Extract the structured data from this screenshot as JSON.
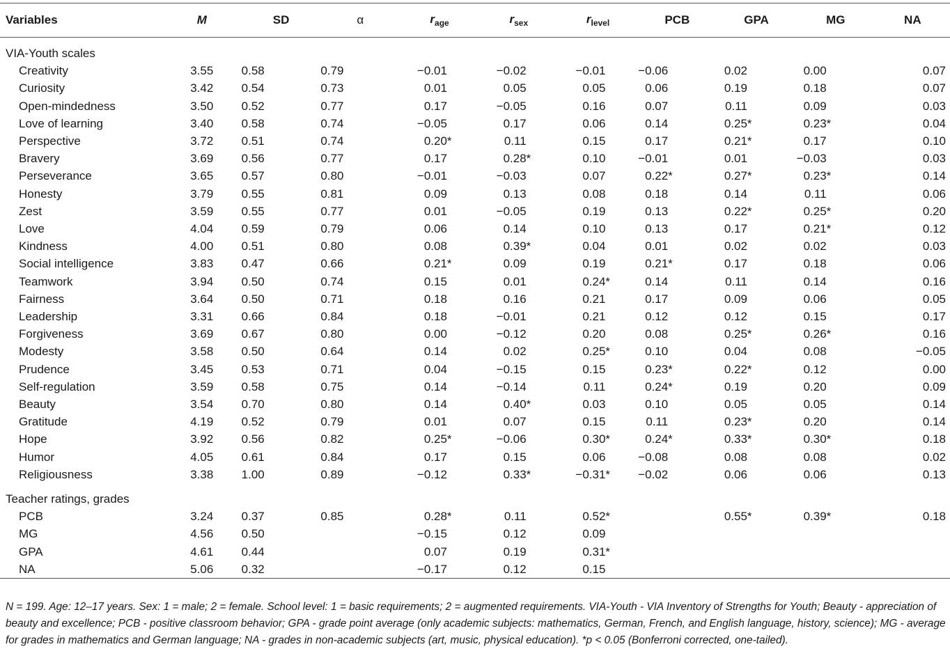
{
  "headers": {
    "variables": "Variables",
    "m": "M",
    "sd": "SD",
    "alpha": "α",
    "r_age_r": "r",
    "r_age_sub": "age",
    "r_sex_r": "r",
    "r_sex_sub": "sex",
    "r_level_r": "r",
    "r_level_sub": "level",
    "pcb": "PCB",
    "gpa": "GPA",
    "mg": "MG",
    "na": "NA"
  },
  "sections": [
    {
      "title": "VIA-Youth scales",
      "rows": [
        [
          "Creativity",
          "3.55",
          "0.58",
          "0.79",
          "−0.01",
          "−0.02",
          "−0.01",
          "−0.06",
          "0.02",
          "0.00",
          "0.07"
        ],
        [
          "Curiosity",
          "3.42",
          "0.54",
          "0.73",
          "0.01",
          "0.05",
          "0.05",
          "0.06",
          "0.19",
          "0.18",
          "0.07"
        ],
        [
          "Open-mindedness",
          "3.50",
          "0.52",
          "0.77",
          "0.17",
          "−0.05",
          "0.16",
          "0.07",
          "0.11",
          "0.09",
          "0.03"
        ],
        [
          "Love of learning",
          "3.40",
          "0.58",
          "0.74",
          "−0.05",
          "0.17",
          "0.06",
          "0.14",
          "0.25*",
          "0.23*",
          "0.04"
        ],
        [
          "Perspective",
          "3.72",
          "0.51",
          "0.74",
          "0.20*",
          "0.11",
          "0.15",
          "0.17",
          "0.21*",
          "0.17",
          "0.10"
        ],
        [
          "Bravery",
          "3.69",
          "0.56",
          "0.77",
          "0.17",
          "0.28*",
          "0.10",
          "−0.01",
          "0.01",
          "−0.03",
          "0.03"
        ],
        [
          "Perseverance",
          "3.65",
          "0.57",
          "0.80",
          "−0.01",
          "−0.03",
          "0.07",
          "0.22*",
          "0.27*",
          "0.23*",
          "0.14"
        ],
        [
          "Honesty",
          "3.79",
          "0.55",
          "0.81",
          "0.09",
          "0.13",
          "0.08",
          "0.18",
          "0.14",
          "0.11",
          "0.06"
        ],
        [
          "Zest",
          "3.59",
          "0.55",
          "0.77",
          "0.01",
          "−0.05",
          "0.19",
          "0.13",
          "0.22*",
          "0.25*",
          "0.20"
        ],
        [
          "Love",
          "4.04",
          "0.59",
          "0.79",
          "0.06",
          "0.14",
          "0.10",
          "0.13",
          "0.17",
          "0.21*",
          "0.12"
        ],
        [
          "Kindness",
          "4.00",
          "0.51",
          "0.80",
          "0.08",
          "0.39*",
          "0.04",
          "0.01",
          "0.02",
          "0.02",
          "0.03"
        ],
        [
          "Social intelligence",
          "3.83",
          "0.47",
          "0.66",
          "0.21*",
          "0.09",
          "0.19",
          "0.21*",
          "0.17",
          "0.18",
          "0.06"
        ],
        [
          "Teamwork",
          "3.94",
          "0.50",
          "0.74",
          "0.15",
          "0.01",
          "0.24*",
          "0.14",
          "0.11",
          "0.14",
          "0.16"
        ],
        [
          "Fairness",
          "3.64",
          "0.50",
          "0.71",
          "0.18",
          "0.16",
          "0.21",
          "0.17",
          "0.09",
          "0.06",
          "0.05"
        ],
        [
          "Leadership",
          "3.31",
          "0.66",
          "0.84",
          "0.18",
          "−0.01",
          "0.21",
          "0.12",
          "0.12",
          "0.15",
          "0.17"
        ],
        [
          "Forgiveness",
          "3.69",
          "0.67",
          "0.80",
          "0.00",
          "−0.12",
          "0.20",
          "0.08",
          "0.25*",
          "0.26*",
          "0.16"
        ],
        [
          "Modesty",
          "3.58",
          "0.50",
          "0.64",
          "0.14",
          "0.02",
          "0.25*",
          "0.10",
          "0.04",
          "0.08",
          "−0.05"
        ],
        [
          "Prudence",
          "3.45",
          "0.53",
          "0.71",
          "0.04",
          "−0.15",
          "0.15",
          "0.23*",
          "0.22*",
          "0.12",
          "0.00"
        ],
        [
          "Self-regulation",
          "3.59",
          "0.58",
          "0.75",
          "0.14",
          "−0.14",
          "0.11",
          "0.24*",
          "0.19",
          "0.20",
          "0.09"
        ],
        [
          "Beauty",
          "3.54",
          "0.70",
          "0.80",
          "0.14",
          "0.40*",
          "0.03",
          "0.10",
          "0.05",
          "0.05",
          "0.14"
        ],
        [
          "Gratitude",
          "4.19",
          "0.52",
          "0.79",
          "0.01",
          "0.07",
          "0.15",
          "0.11",
          "0.23*",
          "0.20",
          "0.14"
        ],
        [
          "Hope",
          "3.92",
          "0.56",
          "0.82",
          "0.25*",
          "−0.06",
          "0.30*",
          "0.24*",
          "0.33*",
          "0.30*",
          "0.18"
        ],
        [
          "Humor",
          "4.05",
          "0.61",
          "0.84",
          "0.17",
          "0.15",
          "0.06",
          "−0.08",
          "0.08",
          "0.08",
          "0.02"
        ],
        [
          "Religiousness",
          "3.38",
          "1.00",
          "0.89",
          "−0.12",
          "0.33*",
          "−0.31*",
          "−0.02",
          "0.06",
          "0.06",
          "0.13"
        ]
      ]
    },
    {
      "title": "Teacher ratings, grades",
      "rows": [
        [
          "PCB",
          "3.24",
          "0.37",
          "0.85",
          "0.28*",
          "0.11",
          "0.52*",
          "",
          "0.55*",
          "0.39*",
          "0.18"
        ],
        [
          "MG",
          "4.56",
          "0.50",
          "",
          "−0.15",
          "0.12",
          "0.09",
          "",
          "",
          "",
          ""
        ],
        [
          "GPA",
          "4.61",
          "0.44",
          "",
          "0.07",
          "0.19",
          "0.31*",
          "",
          "",
          "",
          ""
        ],
        [
          "NA",
          "5.06",
          "0.32",
          "",
          "−0.17",
          "0.12",
          "0.15",
          "",
          "",
          "",
          ""
        ]
      ]
    }
  ],
  "note": "N = 199. Age: 12–17 years. Sex: 1 = male; 2 = female. School level: 1 = basic requirements; 2 = augmented requirements. VIA-Youth - VIA Inventory of Strengths for Youth; Beauty - appreciation of beauty and excellence; PCB - positive classroom behavior; GPA - grade point average (only academic subjects: mathematics, German, French, and English language, history, science); MG - average for grades in mathematics and German language; NA - grades in non-academic subjects (art, music, physical education). *p < 0.05 (Bonferroni corrected, one-tailed)."
}
